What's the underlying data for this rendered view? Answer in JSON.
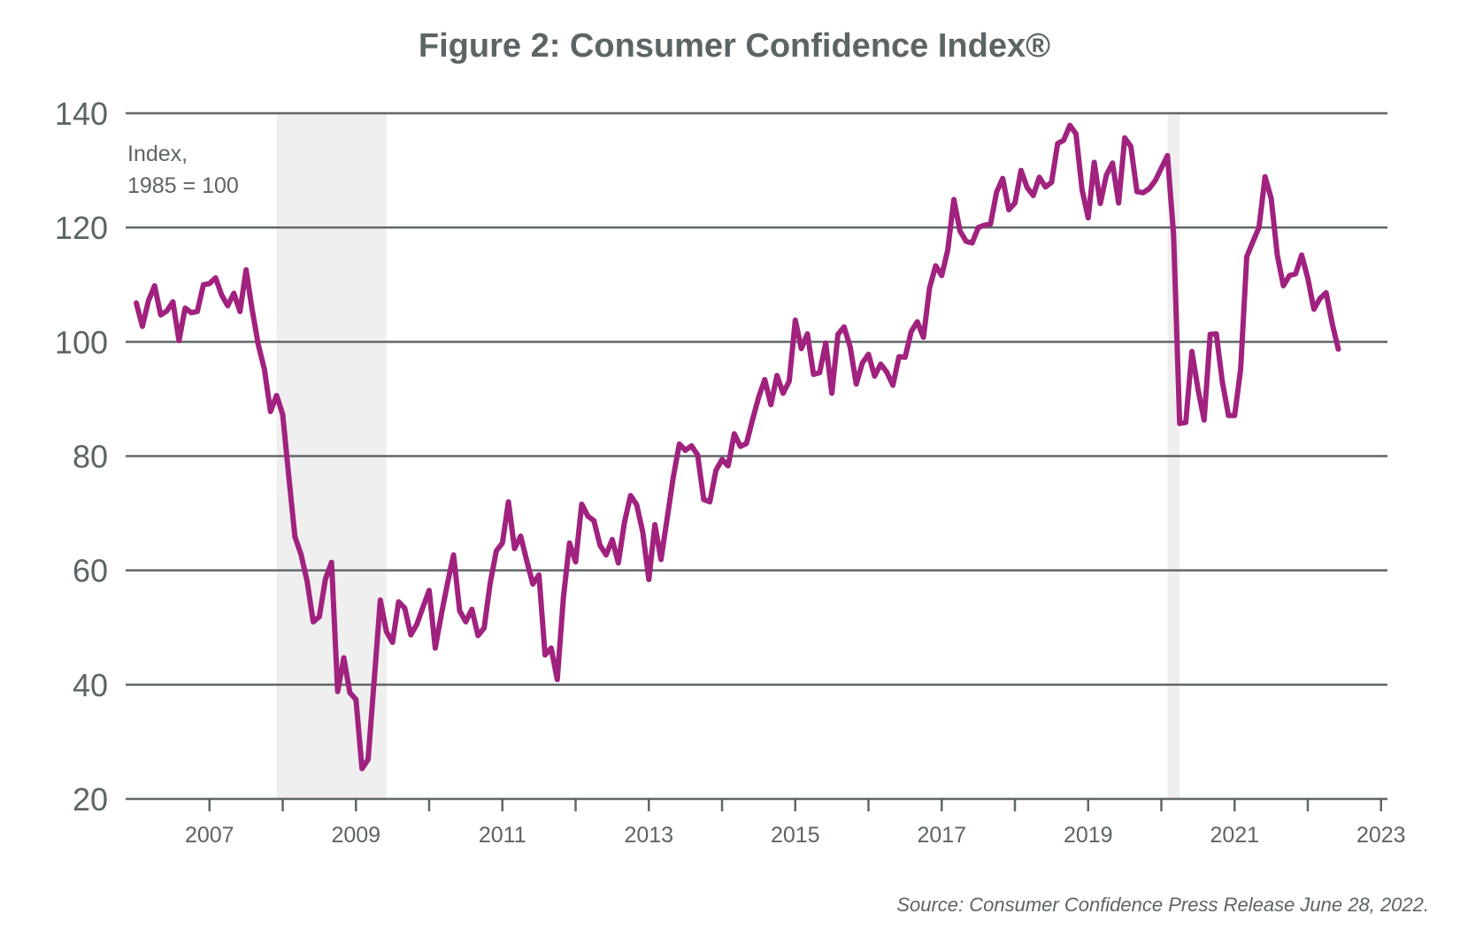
{
  "chart_data": {
    "type": "line",
    "title": "Figure 2: Consumer Confidence Index®",
    "unit_label": [
      "Index,",
      "1985 = 100"
    ],
    "source": "Source: Consumer Confidence Press Release June 28, 2022.",
    "ylim": [
      20,
      140
    ],
    "yticks": [
      20,
      40,
      60,
      80,
      100,
      120,
      140
    ],
    "xlim": [
      2006,
      2023
    ],
    "xtick_labels": [
      "2007",
      "2009",
      "2011",
      "2013",
      "2015",
      "2017",
      "2019",
      "2021",
      "2023"
    ],
    "xtick_values": [
      2007,
      2009,
      2011,
      2013,
      2015,
      2017,
      2019,
      2021,
      2023
    ],
    "minor_xticks": [
      2008,
      2010,
      2012,
      2014,
      2016,
      2018,
      2020,
      2022
    ],
    "grid": "horizontal",
    "start": "2006-01",
    "frequency": "monthly",
    "recessions": [
      [
        "2007-12",
        "2009-06"
      ],
      [
        "2020-02",
        "2020-04"
      ]
    ],
    "colors": {
      "line": "#a0227e",
      "grid": "#5f6768",
      "recession": "#efefef",
      "text": "#5c6466"
    },
    "series": [
      {
        "values": [
          106.8,
          102.7,
          107.2,
          109.8,
          104.7,
          105.4,
          107.0,
          100.2,
          105.9,
          105.1,
          105.3,
          110.0,
          110.2,
          111.2,
          108.2,
          106.3,
          108.5,
          105.3,
          112.6,
          105.6,
          99.5,
          95.2,
          87.8,
          90.6,
          87.3,
          76.4,
          65.9,
          62.8,
          58.1,
          51.0,
          51.9,
          58.5,
          61.4,
          38.8,
          44.7,
          38.6,
          37.4,
          25.3,
          26.9,
          40.8,
          54.8,
          49.3,
          47.4,
          54.5,
          53.4,
          48.7,
          50.6,
          53.6,
          56.5,
          46.4,
          52.3,
          57.7,
          62.7,
          52.9,
          51.0,
          53.2,
          48.6,
          49.9,
          57.8,
          63.4,
          64.8,
          72.0,
          63.8,
          66.0,
          61.7,
          57.6,
          59.2,
          45.2,
          46.4,
          40.9,
          55.2,
          64.8,
          61.5,
          71.6,
          69.5,
          68.7,
          64.4,
          62.7,
          65.4,
          61.3,
          68.4,
          73.1,
          71.5,
          66.7,
          58.4,
          68.0,
          61.9,
          69.0,
          76.2,
          82.1,
          81.0,
          81.8,
          80.2,
          72.4,
          72.0,
          77.5,
          79.4,
          78.3,
          83.9,
          81.7,
          82.2,
          86.4,
          90.3,
          93.4,
          89.0,
          94.1,
          91.0,
          93.1,
          103.8,
          98.8,
          101.4,
          94.3,
          94.6,
          99.8,
          91.0,
          101.3,
          102.6,
          99.1,
          92.6,
          96.3,
          97.8,
          94.0,
          96.1,
          94.7,
          92.4,
          97.4,
          97.3,
          101.8,
          103.5,
          100.8,
          109.4,
          113.3,
          111.6,
          116.1,
          124.9,
          119.4,
          117.6,
          117.3,
          120.0,
          120.4,
          120.6,
          126.2,
          128.6,
          123.1,
          124.3,
          130.0,
          127.0,
          125.6,
          128.8,
          127.1,
          127.9,
          134.7,
          135.3,
          137.9,
          136.4,
          126.6,
          121.7,
          131.4,
          124.2,
          129.2,
          131.3,
          124.3,
          135.7,
          134.2,
          126.3,
          126.1,
          126.8,
          128.2,
          130.4,
          132.6,
          118.8,
          85.7,
          85.9,
          98.3,
          91.7,
          86.3,
          101.3,
          101.4,
          92.9,
          87.1,
          87.1,
          95.2,
          114.9,
          117.5,
          120.0,
          128.9,
          125.1,
          115.2,
          109.8,
          111.6,
          111.9,
          115.2,
          111.1,
          105.7,
          107.6,
          108.6,
          103.2,
          98.7
        ]
      }
    ]
  }
}
